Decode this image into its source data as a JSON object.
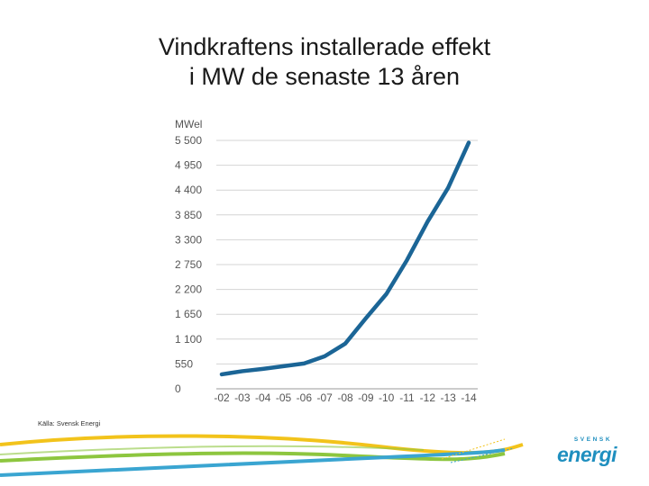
{
  "slide": {
    "title_line1": "Vindkraftens installerade effekt",
    "title_line2": "i MW de senaste 13 åren",
    "source": "Källa: Svensk Energi"
  },
  "logo": {
    "top_text": "SVENSK",
    "main_text": "energi",
    "color": "#1f8fbf"
  },
  "decor_colors": {
    "yellow": "#f2c31b",
    "green": "#8dc63f",
    "blue": "#3aa5d1"
  },
  "chart_data": {
    "type": "line",
    "ylabel": "MWel",
    "xlabel": "",
    "categories": [
      "-02",
      "-03",
      "-04",
      "-05",
      "-06",
      "-07",
      "-08",
      "-09",
      "-10",
      "-11",
      "-12",
      "-13",
      "-14"
    ],
    "series": [
      {
        "values": [
          320,
          390,
          440,
          500,
          560,
          720,
          1000,
          1560,
          2100,
          2850,
          3700,
          4450,
          5450
        ],
        "color": "#1b6596"
      }
    ],
    "yticks": [
      0,
      550,
      1100,
      1650,
      2200,
      2750,
      3300,
      3850,
      4400,
      4950,
      5500
    ],
    "ytick_labels": [
      "0",
      "550",
      "1 100",
      "1 650",
      "2 200",
      "2 750",
      "3 300",
      "3 850",
      "4 400",
      "4 950",
      "5 500"
    ],
    "ylim": [
      0,
      5500
    ],
    "grid": true,
    "legend": "none"
  }
}
